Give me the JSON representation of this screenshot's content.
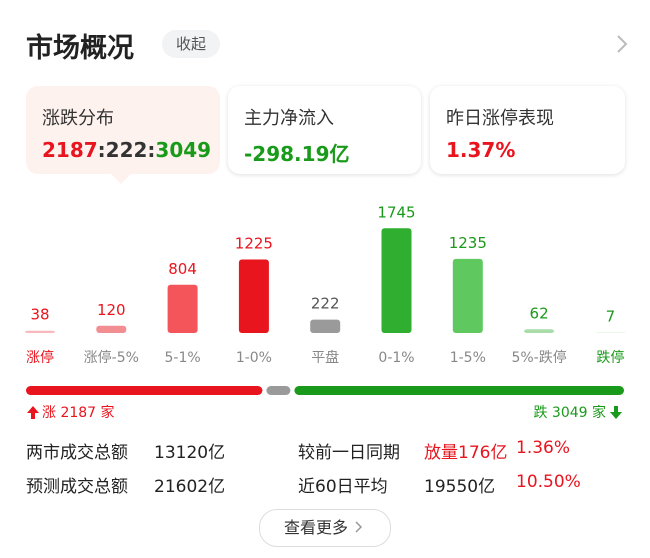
{
  "header": {
    "title": "市场概况",
    "toggle": "收起"
  },
  "cards": [
    {
      "label": "涨跌分布",
      "value_parts": [
        "2187",
        ":",
        "222",
        ":",
        "3049"
      ]
    },
    {
      "label": "主力净流入",
      "value": "-298.19亿"
    },
    {
      "label": "昨日涨停表现",
      "value": "1.37%"
    }
  ],
  "chart_data": {
    "type": "bar",
    "categories": [
      "涨停",
      "涨停-5%",
      "5-1%",
      "1-0%",
      "平盘",
      "0-1%",
      "1-5%",
      "5%-跌停",
      "跌停"
    ],
    "values": [
      38,
      120,
      804,
      1225,
      222,
      1745,
      1235,
      62,
      7
    ],
    "colors": [
      "#f7b9bd",
      "#f28d92",
      "#f4555b",
      "#e8141e",
      "#9a9a9a",
      "#2fae2f",
      "#5fc95f",
      "#a9dca9",
      "#c7ebc7"
    ],
    "label_colors": [
      "#e8141e",
      "#888888",
      "#888888",
      "#888888",
      "#888888",
      "#888888",
      "#888888",
      "#888888",
      "#1a9a1a"
    ],
    "value_colors": [
      "#e8141e",
      "#e8141e",
      "#e8141e",
      "#e8141e",
      "#555555",
      "#1a9a1a",
      "#1a9a1a",
      "#1a9a1a",
      "#1a9a1a"
    ]
  },
  "ratio": {
    "values": [
      2187,
      222,
      3049
    ],
    "colors": [
      "#e8141e",
      "#9a9a9a",
      "#1a9a1a"
    ],
    "rise_label": "涨 2187 家",
    "fall_label": "跌 3049 家"
  },
  "stats": {
    "rows": [
      [
        "两市成交总额",
        "13120亿",
        "较前一日同期",
        "放量176亿",
        "1.36%"
      ],
      [
        "预测成交总额",
        "21602亿",
        "近60日平均",
        "19550亿",
        "10.50%"
      ]
    ]
  },
  "footer": {
    "button": "查看更多"
  }
}
